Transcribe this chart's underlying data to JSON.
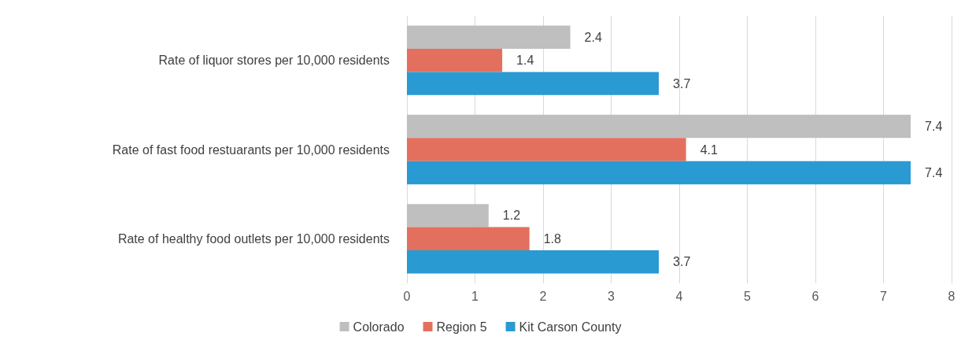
{
  "chart_data": {
    "type": "bar",
    "orientation": "horizontal",
    "categories": [
      "Rate of liquor stores per 10,000 residents",
      "Rate of fast food restuarants per 10,000 residents",
      "Rate of healthy food outlets per 10,000 residents"
    ],
    "series": [
      {
        "name": "Colorado",
        "color": "#bfbfbf",
        "values": [
          2.4,
          7.4,
          1.2
        ]
      },
      {
        "name": "Region 5",
        "color": "#e3705e",
        "values": [
          1.4,
          4.1,
          1.8
        ]
      },
      {
        "name": "Kit Carson County",
        "color": "#2a9ad2",
        "values": [
          3.7,
          7.4,
          3.7
        ]
      }
    ],
    "xlim": [
      0,
      8
    ],
    "xticks": [
      0,
      1,
      2,
      3,
      4,
      5,
      6,
      7,
      8
    ],
    "grid": "x",
    "legend": "bottom",
    "data_labels": true
  }
}
